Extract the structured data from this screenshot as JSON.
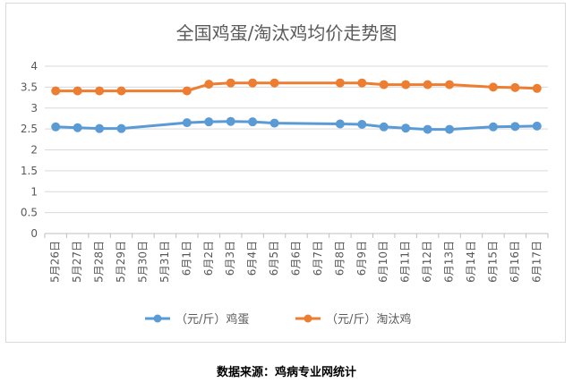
{
  "source_note": "数据来源：鸡病专业网统计",
  "chart_data": {
    "type": "line",
    "title": "全国鸡蛋/淘汰鸡均价走势图",
    "xlabel": "",
    "ylabel": "",
    "ylim": [
      0,
      4
    ],
    "yticks": [
      "0",
      "0.5",
      "1",
      "1.5",
      "2",
      "2.5",
      "3",
      "3.5",
      "4"
    ],
    "grid": true,
    "legend_position": "bottom",
    "categories": [
      "5月26日",
      "5月27日",
      "5月28日",
      "5月29日",
      "5月30日",
      "5月31日",
      "6月1日",
      "6月2日",
      "6月3日",
      "6月4日",
      "6月5日",
      "6月6日",
      "6月7日",
      "6月8日",
      "6月9日",
      "6月10日",
      "6月11日",
      "6月12日",
      "6月13日",
      "6月14日",
      "6月15日",
      "6月16日",
      "6月17日"
    ],
    "series": [
      {
        "name": "（元/斤）鸡蛋",
        "color": "#5b9bd5",
        "values": [
          2.55,
          2.53,
          2.51,
          2.51,
          null,
          null,
          2.65,
          2.67,
          2.68,
          2.67,
          2.64,
          null,
          null,
          2.62,
          2.61,
          2.55,
          2.52,
          2.49,
          2.49,
          null,
          2.55,
          2.56,
          2.57
        ]
      },
      {
        "name": "（元/斤）淘汰鸡",
        "color": "#ed7d31",
        "values": [
          3.41,
          3.41,
          3.41,
          3.41,
          null,
          null,
          3.41,
          3.57,
          3.6,
          3.6,
          3.6,
          null,
          null,
          3.6,
          3.6,
          3.56,
          3.56,
          3.56,
          3.56,
          null,
          3.5,
          3.49,
          3.47
        ]
      }
    ]
  }
}
